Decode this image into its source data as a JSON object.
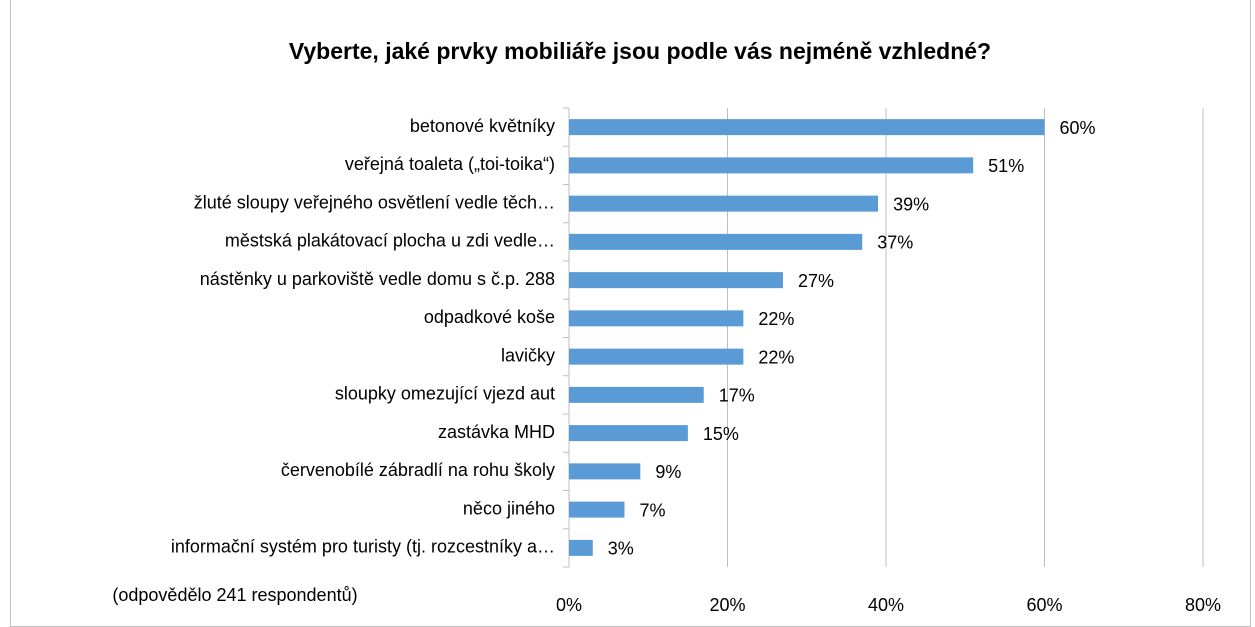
{
  "chart_data": {
    "type": "barh",
    "title": "Vyberte, jaké prvky mobiliáře jsou podle vás nejméně vzhledné?",
    "annotation": "(odpovědělo 241 respondentů)",
    "categories": [
      "betonové květníky",
      "veřejná toaleta („toi-toika“)",
      "žluté sloupy veřejného osvětlení vedle těch…",
      "městská plakátovací plocha u zdi vedle…",
      "nástěnky u parkoviště vedle domu s č.p. 288",
      "odpadkové koše",
      "lavičky",
      "sloupky omezující vjezd aut",
      "zastávka MHD",
      "červenobílé zábradlí na rohu školy",
      "něco jiného",
      "informační systém pro turisty (tj. rozcestníky a…"
    ],
    "values": [
      60,
      51,
      39,
      37,
      27,
      22,
      22,
      17,
      15,
      9,
      7,
      3
    ],
    "value_labels": [
      "60%",
      "51%",
      "39%",
      "37%",
      "27%",
      "22%",
      "22%",
      "17%",
      "15%",
      "9%",
      "7%",
      "3%"
    ],
    "color": "#5b9bd5",
    "xlim": [
      0,
      80
    ],
    "xticks": [
      {
        "value": 0,
        "label": "0%"
      },
      {
        "value": 20,
        "label": "20%"
      },
      {
        "value": 40,
        "label": "40%"
      },
      {
        "value": 60,
        "label": "60%"
      },
      {
        "value": 80,
        "label": "80%"
      }
    ],
    "grid": true
  }
}
